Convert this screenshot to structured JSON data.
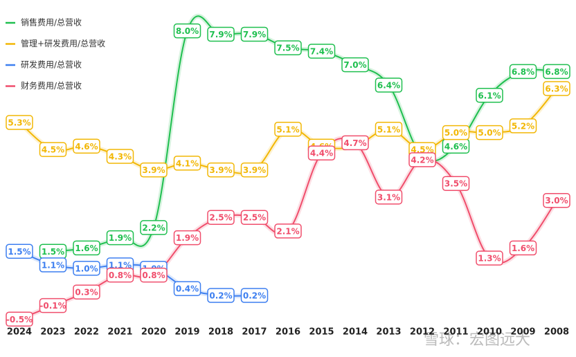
{
  "chart_data": {
    "type": "line",
    "categories": [
      "2024",
      "2023",
      "2022",
      "2021",
      "2020",
      "2019",
      "2018",
      "2017",
      "2016",
      "2015",
      "2014",
      "2013",
      "2012",
      "2011",
      "2010",
      "2009",
      "2008"
    ],
    "ylim": [
      -0.8,
      8.4
    ],
    "legend": "top-left",
    "watermark": "雪球：宏图远大",
    "series": [
      {
        "name": "销售费用/总营收",
        "color": "#1fbf4f",
        "values": [
          null,
          1.5,
          1.6,
          1.9,
          2.2,
          8.0,
          7.9,
          7.9,
          7.5,
          7.4,
          7.0,
          6.4,
          4.3,
          4.6,
          6.1,
          6.8,
          6.8
        ],
        "value_labels": [
          null,
          "1.5%",
          "1.6%",
          "1.9%",
          "2.2%",
          "8.0%",
          "7.9%",
          "7.9%",
          "7.5%",
          "7.4%",
          "7.0%",
          "6.4%",
          null,
          "4.6%",
          "6.1%",
          "6.8%",
          "6.8%"
        ]
      },
      {
        "name": "管理+研发费用/总营收",
        "color": "#f2b705",
        "values": [
          5.3,
          4.5,
          4.6,
          4.3,
          3.9,
          4.1,
          3.9,
          3.9,
          5.1,
          4.6,
          4.6,
          5.1,
          4.5,
          5.0,
          5.0,
          5.2,
          6.3
        ],
        "value_labels": [
          "5.3%",
          "4.5%",
          "4.6%",
          "4.3%",
          "3.9%",
          "4.1%",
          "3.9%",
          "3.9%",
          "5.1%",
          "4.6%",
          null,
          "5.1%",
          "4.5%",
          "5.0%",
          "5.0%",
          "5.2%",
          "6.3%"
        ]
      },
      {
        "name": "研发费用/总营收",
        "color": "#3d7ff0",
        "values": [
          1.5,
          1.1,
          1.0,
          1.1,
          1.0,
          0.4,
          0.2,
          0.2,
          null,
          null,
          null,
          null,
          null,
          null,
          null,
          null,
          null
        ],
        "value_labels": [
          "1.5%",
          "1.1%",
          "1.0%",
          "1.1%",
          "1.0%",
          "0.4%",
          "0.2%",
          "0.2%",
          null,
          null,
          null,
          null,
          null,
          null,
          null,
          null,
          null
        ]
      },
      {
        "name": "财务费用/总营收",
        "color": "#f04e6c",
        "values": [
          -0.5,
          -0.1,
          0.3,
          0.8,
          0.8,
          1.9,
          2.5,
          2.5,
          2.1,
          4.4,
          4.7,
          3.1,
          4.2,
          3.5,
          1.3,
          1.6,
          3.0
        ],
        "value_labels": [
          "-0.5%",
          "-0.1%",
          "0.3%",
          "0.8%",
          "0.8%",
          "1.9%",
          "2.5%",
          "2.5%",
          "2.1%",
          "4.4%",
          "4.7%",
          "3.1%",
          "4.2%",
          "3.5%",
          "1.3%",
          "1.6%",
          "3.0%"
        ]
      }
    ]
  }
}
